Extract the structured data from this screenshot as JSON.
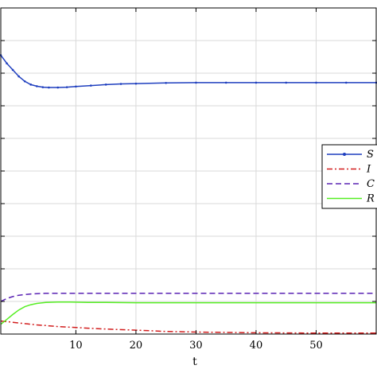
{
  "chart_data": {
    "type": "line",
    "xlabel": "t",
    "ylabel": "",
    "title": "",
    "xlim": [
      -2.5,
      60
    ],
    "ylim": [
      0,
      1
    ],
    "grid": true,
    "legend_position": "right",
    "x_ticks": [
      "10",
      "20",
      "30",
      "40",
      "50"
    ],
    "series": [
      {
        "name": "S",
        "color": "#1f3fbf",
        "style": "solid-with-markers",
        "x": [
          -2.5,
          -1.5,
          -0.5,
          0.5,
          1.5,
          2.5,
          3.5,
          4.5,
          5.5,
          7,
          8.5,
          10,
          12.5,
          15,
          17.5,
          20,
          25,
          30,
          35,
          40,
          45,
          50,
          55,
          60
        ],
        "y": [
          0.855,
          0.83,
          0.81,
          0.79,
          0.775,
          0.765,
          0.76,
          0.757,
          0.756,
          0.756,
          0.757,
          0.759,
          0.762,
          0.765,
          0.767,
          0.768,
          0.77,
          0.771,
          0.771,
          0.771,
          0.771,
          0.771,
          0.771,
          0.771
        ]
      },
      {
        "name": "I",
        "color": "#d21e1e",
        "style": "dash-dot",
        "x": [
          -2.5,
          -1,
          0.5,
          2,
          3.5,
          5,
          7,
          9,
          11,
          14,
          17,
          20,
          25,
          30,
          40,
          50,
          60
        ],
        "y": [
          0.04,
          0.037,
          0.034,
          0.031,
          0.028,
          0.026,
          0.023,
          0.021,
          0.019,
          0.016,
          0.014,
          0.012,
          0.008,
          0.006,
          0.004,
          0.003,
          0.003
        ]
      },
      {
        "name": "C",
        "color": "#5a23b4",
        "style": "dashed",
        "x": [
          -2.5,
          -1.5,
          -0.5,
          0.5,
          1.5,
          2.5,
          3.5,
          5,
          7,
          10,
          15,
          20,
          30,
          40,
          50,
          60
        ],
        "y": [
          0.1,
          0.109,
          0.115,
          0.119,
          0.121,
          0.123,
          0.124,
          0.125,
          0.125,
          0.125,
          0.125,
          0.125,
          0.125,
          0.125,
          0.125,
          0.125
        ]
      },
      {
        "name": "R",
        "color": "#55ee22",
        "style": "solid",
        "x": [
          -2.5,
          -1.5,
          -0.5,
          0.5,
          1.5,
          2.5,
          3.5,
          5,
          7,
          9,
          12,
          15,
          20,
          30,
          40,
          50,
          60
        ],
        "y": [
          0.03,
          0.045,
          0.06,
          0.074,
          0.084,
          0.09,
          0.094,
          0.097,
          0.098,
          0.098,
          0.097,
          0.097,
          0.096,
          0.096,
          0.096,
          0.096,
          0.096
        ]
      }
    ]
  }
}
